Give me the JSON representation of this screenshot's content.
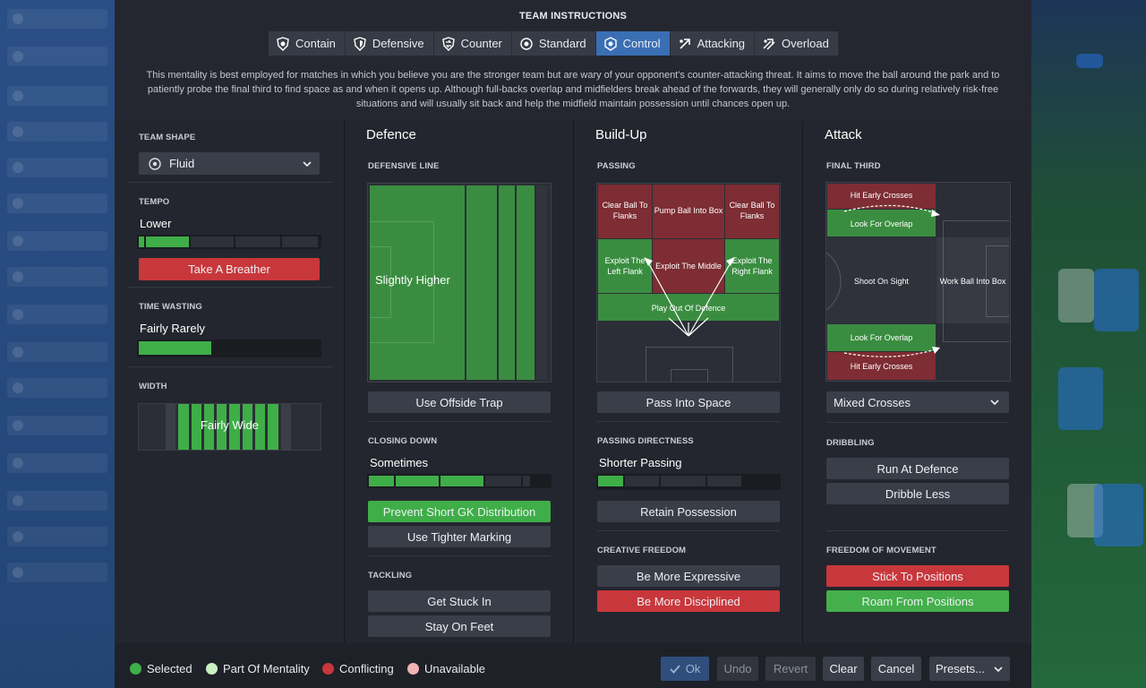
{
  "header": {
    "title": "TEAM INSTRUCTIONS",
    "mentalities": [
      {
        "label": "Contain",
        "icon": "shield-heart-icon"
      },
      {
        "label": "Defensive",
        "icon": "shield-icon"
      },
      {
        "label": "Counter",
        "icon": "counter-icon"
      },
      {
        "label": "Standard",
        "icon": "balance-icon"
      },
      {
        "label": "Control",
        "icon": "control-icon"
      },
      {
        "label": "Attacking",
        "icon": "attacking-icon"
      },
      {
        "label": "Overload",
        "icon": "overload-icon"
      }
    ],
    "active_mentality": "Control",
    "description": "This mentality is best employed for matches in which you believe you are the stronger team but are wary of your opponent's counter-attacking threat. It aims to move the ball around the park and to patiently probe the final third to find space as and when it opens up. Although full-backs overlap and midfielders break ahead of the forwards, they will generally only do so during relatively risk-free situations and will usually sit back and help the midfield maintain possession until chances open up."
  },
  "left": {
    "team_shape_label": "TEAM SHAPE",
    "team_shape_value": "Fluid",
    "tempo_label": "TEMPO",
    "tempo_value": "Lower",
    "take_breather": "Take A Breather",
    "time_wasting_label": "TIME WASTING",
    "time_wasting_value": "Fairly Rarely",
    "width_label": "WIDTH",
    "width_value": "Fairly Wide",
    "tempo_level": 0.3,
    "time_wasting_level": 0.4
  },
  "defence": {
    "header": "Defence",
    "defensive_line_label": "DEFENSIVE LINE",
    "defensive_line_value": "Slightly Higher",
    "offside_trap": "Use Offside Trap",
    "closing_down_label": "CLOSING DOWN",
    "closing_down_value": "Sometimes",
    "prevent_gk": "Prevent Short GK Distribution",
    "tighter_marking": "Use Tighter Marking",
    "tackling_label": "TACKLING",
    "get_stuck_in": "Get Stuck In",
    "stay_on_feet": "Stay On Feet"
  },
  "buildup": {
    "header": "Build-Up",
    "passing_label": "PASSING",
    "zones": {
      "clear_left": "Clear Ball To Flanks",
      "pump": "Pump Ball Into Box",
      "clear_right": "Clear Ball To Flanks",
      "exploit_left": "Exploit The Left Flank",
      "exploit_middle": "Exploit The Middle",
      "exploit_right": "Exploit The Right Flank",
      "play_out": "Play Out Of Defence"
    },
    "pass_into_space": "Pass Into Space",
    "directness_label": "PASSING DIRECTNESS",
    "directness_value": "Shorter Passing",
    "retain_possession": "Retain Possession",
    "creative_label": "CREATIVE FREEDOM",
    "more_expressive": "Be More Expressive",
    "more_disciplined": "Be More Disciplined"
  },
  "attack": {
    "header": "Attack",
    "final_third_label": "FINAL THIRD",
    "zones": {
      "hit_early_top": "Hit Early Crosses",
      "overlap_top": "Look For Overlap",
      "shoot": "Shoot On Sight",
      "work_ball": "Work Ball Into Box",
      "overlap_bottom": "Look For Overlap",
      "hit_early_bottom": "Hit Early Crosses"
    },
    "crossing_value": "Mixed Crosses",
    "dribbling_label": "DRIBBLING",
    "run_at_defence": "Run At Defence",
    "dribble_less": "Dribble Less",
    "freedom_label": "FREEDOM OF MOVEMENT",
    "stick_positions": "Stick To Positions",
    "roam_positions": "Roam From Positions"
  },
  "footer": {
    "legend": [
      {
        "label": "Selected",
        "color": "#3fae48"
      },
      {
        "label": "Part Of Mentality",
        "color": "#c8f0c0"
      },
      {
        "label": "Conflicting",
        "color": "#c8373b"
      },
      {
        "label": "Unavailable",
        "color": "#f2b3b3"
      }
    ],
    "ok": "Ok",
    "undo": "Undo",
    "revert": "Revert",
    "clear": "Clear",
    "cancel": "Cancel",
    "presets": "Presets..."
  }
}
